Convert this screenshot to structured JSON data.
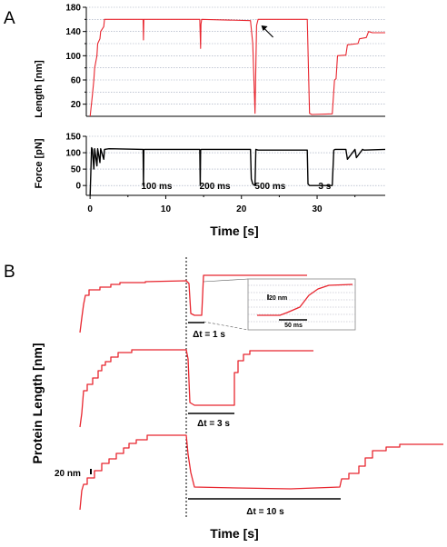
{
  "panel_labels": {
    "a": "A",
    "b": "B"
  },
  "chart_data": [
    {
      "type": "line",
      "id": "A-length",
      "ylabel": "Length [nm]",
      "xlim": [
        -0.5,
        39
      ],
      "ylim": [
        0,
        180
      ],
      "yticks": [
        20,
        60,
        100,
        140,
        180
      ],
      "yticks_minor": [
        40,
        80,
        120,
        160
      ],
      "grid": true,
      "color": "#e8252e",
      "series": [
        {
          "x": [
            0,
            0.3,
            0.5,
            0.6,
            0.9,
            1.0,
            1.3,
            1.4,
            1.8,
            1.9,
            2.5,
            7.0,
            7.05,
            7.1,
            7.15,
            14.5,
            14.6,
            14.65,
            14.75,
            21.2,
            21.5,
            21.8,
            22.0,
            22.2,
            27.5,
            28.7,
            29.0,
            29.3,
            32.0,
            32.3,
            32.5,
            32.7,
            33.8,
            34.0,
            35.4,
            35.6,
            36.5,
            36.8,
            37.3,
            39.0
          ],
          "y": [
            0,
            35,
            60,
            80,
            100,
            120,
            128,
            140,
            148,
            160,
            160,
            160,
            126,
            160,
            160,
            160,
            112,
            152,
            160,
            158,
            120,
            5,
            150,
            160,
            160,
            160,
            5,
            3,
            4,
            60,
            62,
            100,
            101,
            118,
            120,
            128,
            130,
            140,
            138,
            138
          ]
        }
      ],
      "annotations": [
        {
          "text": "",
          "kind": "arrow",
          "x": 22.5,
          "y": 150
        }
      ]
    },
    {
      "type": "line",
      "id": "A-force",
      "ylabel": "Force [pN]",
      "xlabel": "Time [s]",
      "xlim": [
        -0.5,
        39
      ],
      "ylim": [
        -30,
        150
      ],
      "yticks": [
        0,
        50,
        100,
        150
      ],
      "xticks": [
        0,
        10,
        20,
        30
      ],
      "grid": true,
      "color": "#000000",
      "series": [
        {
          "x": [
            0,
            0.2,
            0.3,
            0.5,
            0.6,
            0.9,
            1.0,
            1.3,
            1.4,
            1.8,
            1.9,
            2.5,
            7.0,
            7.05,
            7.1,
            7.15,
            14.5,
            14.55,
            14.6,
            14.7,
            21.2,
            21.3,
            21.5,
            21.8,
            21.9,
            22.2,
            28.7,
            28.8,
            29.0,
            32.0,
            32.2,
            32.4,
            33.8,
            34.0,
            35.0,
            35.2,
            36.0,
            36.2,
            39.0
          ],
          "y": [
            -30,
            115,
            110,
            50,
            112,
            60,
            112,
            70,
            112,
            80,
            110,
            112,
            110,
            0,
            108,
            110,
            110,
            0,
            108,
            110,
            110,
            20,
            5,
            0,
            110,
            108,
            108,
            5,
            0,
            0,
            108,
            110,
            110,
            80,
            110,
            85,
            110,
            108,
            110
          ]
        }
      ],
      "annotations": [
        {
          "text": "100 ms",
          "x": 8.8
        },
        {
          "text": "200 ms",
          "x": 16.5
        },
        {
          "text": "500 ms",
          "x": 23.8
        },
        {
          "text": "3 s",
          "x": 31.0
        }
      ]
    },
    {
      "type": "line",
      "id": "B-traces",
      "ylabel": "Protein Length [nm]",
      "xlabel": "Time [s]",
      "scale_bar": "20 nm",
      "color": "#e8252e",
      "traces": [
        {
          "dt_label": "Δt = 1 s",
          "dt": 1
        },
        {
          "dt_label": "Δt = 3 s",
          "dt": 3
        },
        {
          "dt_label": "Δt = 10 s",
          "dt": 10
        }
      ],
      "inset": {
        "scale_y": "20 nm",
        "scale_x": "50 ms"
      }
    }
  ]
}
